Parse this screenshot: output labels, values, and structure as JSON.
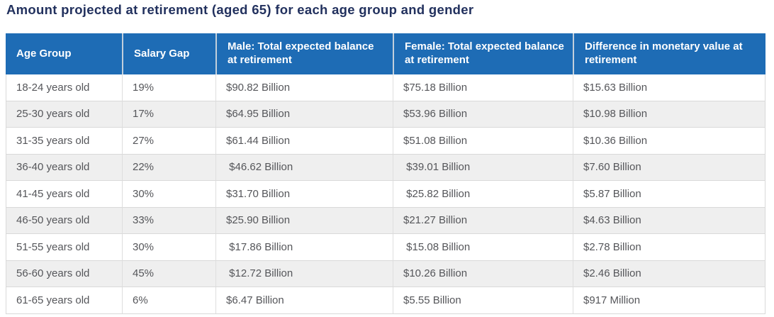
{
  "colors": {
    "header_bg": "#1e6cb5",
    "header_text": "#ffffff",
    "title_text": "#22315e",
    "body_text": "#55565a",
    "row_alt_bg": "#efefef",
    "row_border": "#d9d9d9",
    "header_divider": "#c2cfdc"
  },
  "chart_data": {
    "type": "table",
    "title": "Amount projected at retirement (aged 65) for each age group and gender",
    "columns": [
      "Age Group",
      "Salary Gap",
      "Male: Total expected balance at retirement",
      "Female: Total expected balance at retirement",
      "Difference in monetary value at retirement"
    ],
    "rows": [
      [
        "18-24 years old",
        "19%",
        "$90.82 Billion",
        "$75.18 Billion",
        "$15.63 Billion"
      ],
      [
        "25-30 years old",
        "17%",
        "$64.95 Billion",
        "$53.96 Billion",
        "$10.98 Billion"
      ],
      [
        "31-35 years old",
        "27%",
        "$61.44 Billion",
        "$51.08 Billion",
        "$10.36 Billion"
      ],
      [
        "36-40 years old",
        "22%",
        " $46.62 Billion",
        " $39.01 Billion",
        "$7.60 Billion"
      ],
      [
        "41-45 years old",
        "30%",
        "$31.70 Billion",
        " $25.82 Billion",
        "$5.87 Billion"
      ],
      [
        "46-50 years old",
        "33%",
        "$25.90 Billion",
        "$21.27 Billion",
        "$4.63 Billion"
      ],
      [
        "51-55 years old",
        "30%",
        " $17.86 Billion",
        " $15.08 Billion",
        "$2.78 Billion"
      ],
      [
        "56-60 years old",
        "45%",
        " $12.72 Billion",
        "$10.26 Billion",
        "$2.46 Billion"
      ],
      [
        "61-65 years old",
        "6%",
        "$6.47 Billion",
        "$5.55 Billion",
        "$917 Million"
      ]
    ]
  }
}
